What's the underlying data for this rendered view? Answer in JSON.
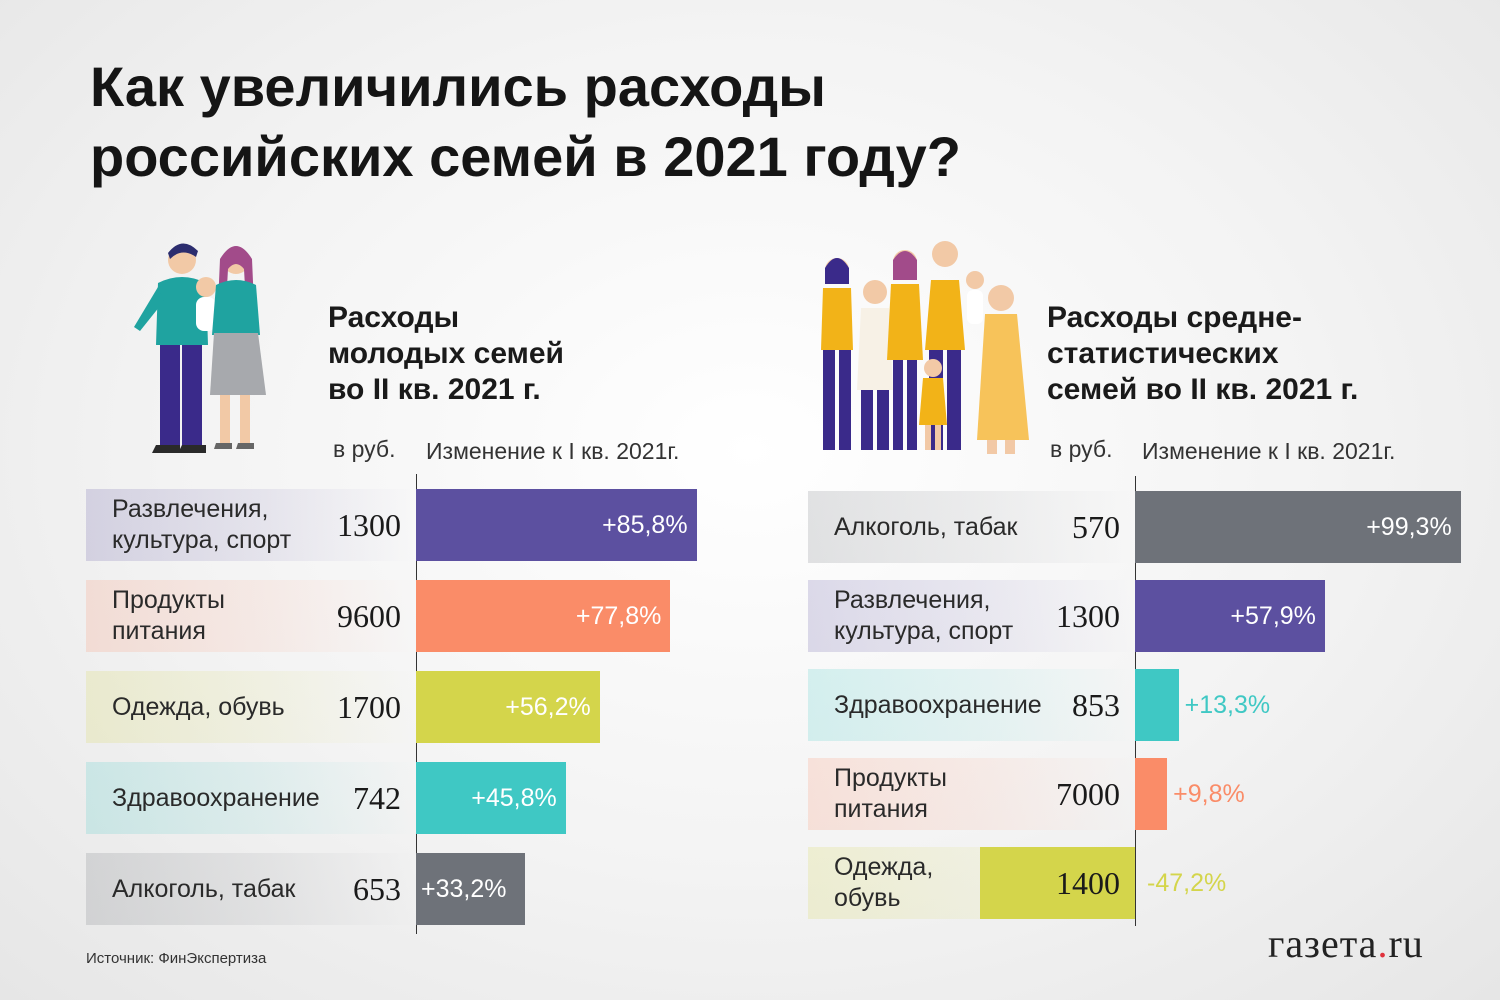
{
  "title_lines": [
    "Как увеличились расходы",
    "российских семей в 2021 году?"
  ],
  "left": {
    "subtitle_lines": [
      "Расходы",
      "молодых семей",
      "во II кв. 2021 г."
    ],
    "unit_label": "в руб.",
    "change_label": "Изменение к I кв. 2021г.",
    "chart_data": {
      "type": "bar",
      "categories": [
        [
          "Развлечения,",
          "культура, спорт"
        ],
        [
          "Продукты",
          "питания"
        ],
        [
          "Одежда, обувь"
        ],
        [
          "Здравоохранение"
        ],
        [
          "Алкоголь, табак"
        ]
      ],
      "values_rub": [
        "1300",
        "9600",
        "1700",
        "742",
        "653"
      ],
      "change_labels": [
        "+85,8%",
        "+77,8%",
        "+56,2%",
        "+45,8%",
        "+33,2%"
      ],
      "change_values": [
        85.8,
        77.8,
        56.2,
        45.8,
        33.2
      ],
      "colors": [
        "#5c50a0",
        "#fa8c68",
        "#d4d54b",
        "#3fc8c4",
        "#6e7279"
      ]
    }
  },
  "right": {
    "subtitle_lines": [
      "Расходы средне-",
      "статистических",
      "семей во II кв. 2021 г."
    ],
    "unit_label": "в руб.",
    "change_label": "Изменение к I кв. 2021г.",
    "chart_data": {
      "type": "bar",
      "categories": [
        [
          "Алкоголь, табак"
        ],
        [
          "Развлечения,",
          "культура, спорт"
        ],
        [
          "Здравоохранение"
        ],
        [
          "Продукты",
          "питания"
        ],
        [
          "Одежда,",
          "обувь"
        ]
      ],
      "values_rub": [
        "570",
        "1300",
        "853",
        "7000",
        "1400"
      ],
      "change_labels": [
        "+99,3%",
        "+57,9%",
        "+13,3%",
        "+9,8%",
        "-47,2%"
      ],
      "change_values": [
        99.3,
        57.9,
        13.3,
        9.8,
        -47.2
      ],
      "colors": [
        "#6e7279",
        "#5c50a0",
        "#3fc8c4",
        "#fa8c68",
        "#d4d54b"
      ]
    }
  },
  "source": "Источник: ФинЭкспертиза",
  "logo": {
    "main": "газета",
    "dot": ".",
    "suffix": "ru"
  }
}
